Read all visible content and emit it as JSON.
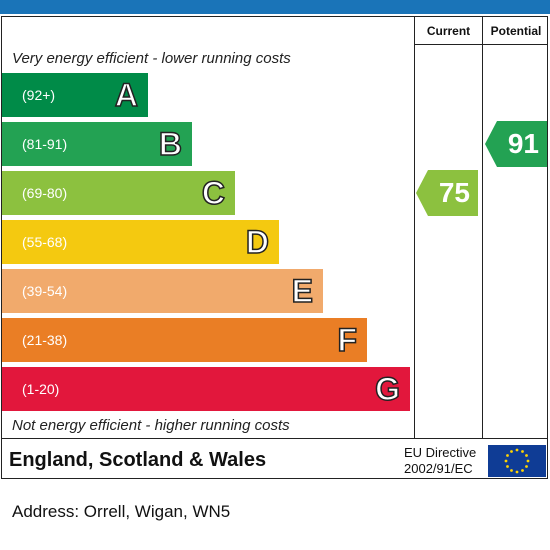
{
  "chart_data": {
    "type": "bar",
    "columns": {
      "current": "Current",
      "potential": "Potential"
    },
    "top_note": "Very energy efficient - lower running costs",
    "bottom_note": "Not energy efficient - higher running costs",
    "bands": [
      {
        "letter": "A",
        "range": "(92+)",
        "min": 92,
        "max": 100,
        "color": "#008b48"
      },
      {
        "letter": "B",
        "range": "(81-91)",
        "min": 81,
        "max": 91,
        "color": "#23a253"
      },
      {
        "letter": "C",
        "range": "(69-80)",
        "min": 69,
        "max": 80,
        "color": "#8cc13f"
      },
      {
        "letter": "D",
        "range": "(55-68)",
        "min": 55,
        "max": 68,
        "color": "#f4c910"
      },
      {
        "letter": "E",
        "range": "(39-54)",
        "min": 39,
        "max": 54,
        "color": "#f1aa6c"
      },
      {
        "letter": "F",
        "range": "(21-38)",
        "min": 21,
        "max": 38,
        "color": "#ea7e25"
      },
      {
        "letter": "G",
        "range": "(1-20)",
        "min": 1,
        "max": 20,
        "color": "#e2173c"
      }
    ],
    "current": {
      "value": 75,
      "band": "C",
      "color": "#8cc13f"
    },
    "potential": {
      "value": 91,
      "band": "B",
      "color": "#23a253"
    }
  },
  "footer": {
    "region": "England, Scotland & Wales",
    "eu_line1": "EU Directive",
    "eu_line2": "2002/91/EC"
  },
  "address": "Address: Orrell, Wigan, WN5"
}
